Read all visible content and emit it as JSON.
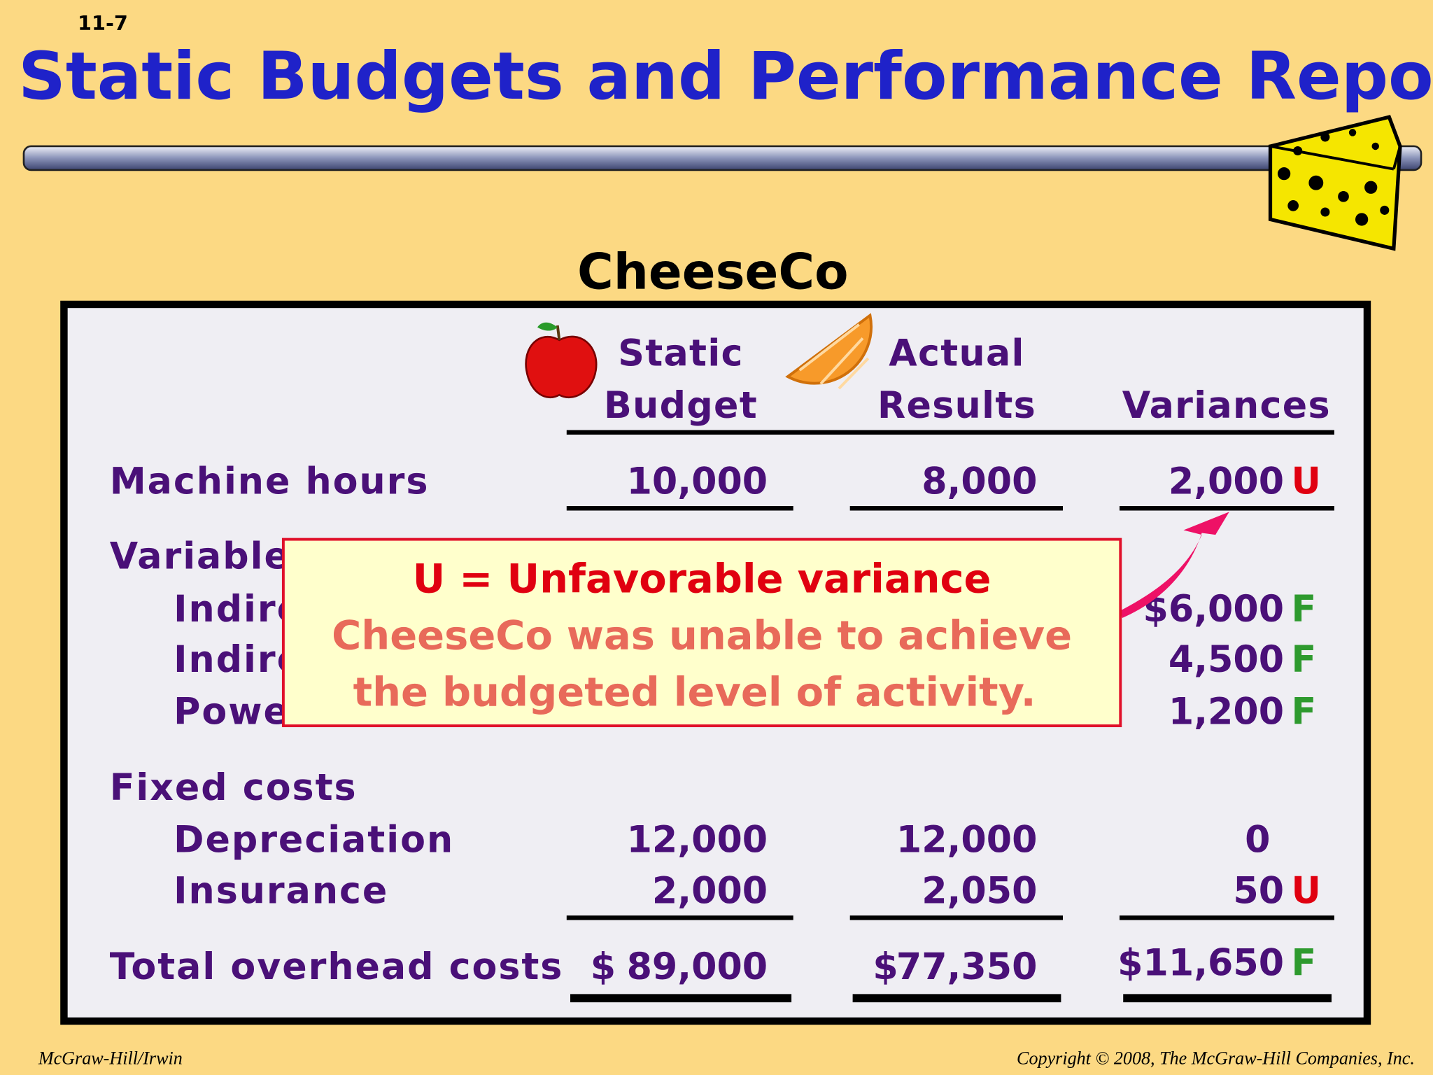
{
  "slide_number": "11-7",
  "title": "Static Budgets and Performance Reports",
  "company": "CheeseCo",
  "table": {
    "headers": [
      [
        "Static",
        "Budget"
      ],
      [
        "Actual",
        "Results"
      ],
      [
        "Variances"
      ]
    ],
    "rows": [
      {
        "label": "Machine hours",
        "static": "10,000",
        "actual": "8,000",
        "variance": "2,000",
        "flag": "U"
      },
      {
        "label": "Variable"
      },
      {
        "label": "Indire",
        "variance": "$6,000",
        "flag": "F"
      },
      {
        "label": "Indire",
        "variance": "4,500",
        "flag": "F"
      },
      {
        "label": "Powe",
        "variance": "1,200",
        "flag": "F"
      },
      {
        "label": "Fixed costs"
      },
      {
        "label": "Depreciation",
        "static": "12,000",
        "actual": "12,000",
        "variance": "0"
      },
      {
        "label": "Insurance",
        "static": "2,000",
        "actual": "2,050",
        "variance": "50",
        "flag": "U"
      },
      {
        "label": "Total overhead costs",
        "static_currency": "$",
        "static": "89,000",
        "actual_currency": "$",
        "actual": "77,350",
        "variance": "$11,650",
        "flag": "F"
      }
    ]
  },
  "callout": {
    "heading": "U = Unfavorable variance",
    "body": [
      "CheeseCo was unable to achieve",
      "the budgeted level of activity."
    ]
  },
  "footer": {
    "left": "McGraw-Hill/Irwin",
    "right": "Copyright © 2008, The McGraw-Hill Companies, Inc."
  }
}
